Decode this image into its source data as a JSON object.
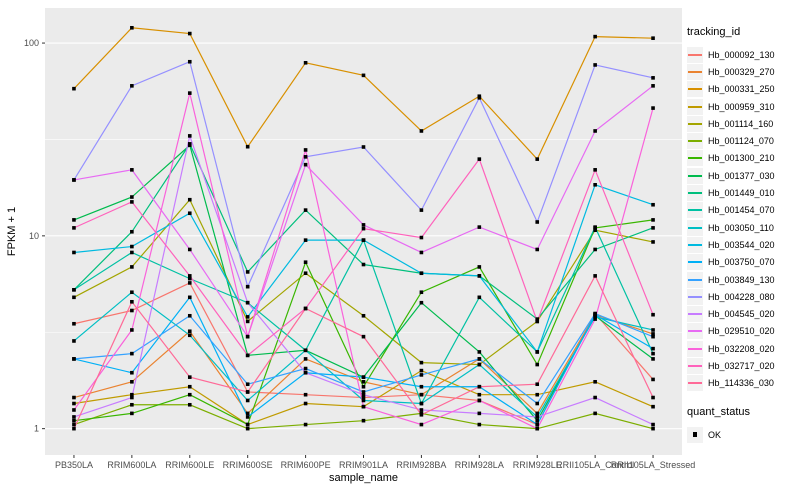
{
  "figure": {
    "background": "#FFFFFF",
    "panel_background": "#EBEBEB",
    "grid_color": "#FFFFFF",
    "tick_label_color": "#4D4D4D",
    "tick_mark_color": "#333333",
    "marker_color": "#000000"
  },
  "chart_data": {
    "type": "line",
    "title": "",
    "xlabel": "sample_name",
    "ylabel": "FPKM + 1",
    "y_scale": "log10",
    "ylim": [
      0.73,
      152
    ],
    "y_ticks": [
      100,
      10,
      1
    ],
    "y_tick_labels": [
      "100",
      "10",
      "1"
    ],
    "y_minor_ticks": [
      31.62,
      3.162
    ],
    "grid": true,
    "legend_position": "right",
    "legend_titles": {
      "series": "tracking_id",
      "shape": "quant_status"
    },
    "shape_legend": [
      {
        "label": "OK",
        "marker": "black-square"
      }
    ],
    "categories": [
      "PB350LA",
      "RRIM600LA",
      "RRIM600LE",
      "RRIM600SE",
      "RRIM600PE",
      "RRIM901LA",
      "RRIM928BA",
      "RRIM928LA",
      "RRIM928LE",
      "RRII105LA_Control",
      "RRII105LA_Stressed"
    ],
    "series": [
      {
        "name": "Hb_000092_130",
        "color": "#F8766D",
        "values": [
          3.5,
          4.1,
          5.7,
          1.55,
          1.5,
          1.45,
          1.5,
          1.4,
          1.05,
          3.95,
          1.8
        ]
      },
      {
        "name": "Hb_000329_270",
        "color": "#EA8331",
        "values": [
          1.45,
          1.75,
          3.2,
          1.2,
          2.3,
          1.75,
          1.5,
          2.3,
          1.2,
          3.9,
          3.1
        ]
      },
      {
        "name": "Hb_000331_250",
        "color": "#D89000",
        "values": [
          58,
          120,
          112,
          29,
          79,
          68,
          35,
          53,
          25,
          108,
          106
        ]
      },
      {
        "name": "Hb_000959_310",
        "color": "#C09B00",
        "values": [
          1.35,
          1.5,
          1.65,
          1.05,
          1.35,
          1.3,
          2.0,
          1.5,
          1.5,
          1.75,
          1.3
        ]
      },
      {
        "name": "Hb_001114_160",
        "color": "#A3A500",
        "values": [
          4.8,
          6.9,
          15.4,
          3.6,
          6.4,
          3.85,
          2.2,
          2.15,
          3.6,
          10.7,
          9.3
        ]
      },
      {
        "name": "Hb_001124_070",
        "color": "#7CAE00",
        "values": [
          1.05,
          1.33,
          1.33,
          1.0,
          1.05,
          1.1,
          1.2,
          1.05,
          1.0,
          1.2,
          1.0
        ]
      },
      {
        "name": "Hb_001300_210",
        "color": "#39B600",
        "values": [
          1.1,
          1.2,
          1.5,
          1.05,
          7.3,
          1.65,
          5.1,
          6.9,
          2.15,
          11.0,
          12.1
        ]
      },
      {
        "name": "Hb_001377_030",
        "color": "#00BB4E",
        "values": [
          12.1,
          15.9,
          29.5,
          2.4,
          2.55,
          1.85,
          4.5,
          2.5,
          1.1,
          3.85,
          2.3
        ]
      },
      {
        "name": "Hb_001449_010",
        "color": "#00BF7D",
        "values": [
          5.25,
          10.5,
          30,
          6.5,
          13.6,
          7.1,
          6.4,
          6.2,
          3.7,
          8.5,
          11.0
        ]
      },
      {
        "name": "Hb_001454_070",
        "color": "#00C1A3",
        "values": [
          5.25,
          8.2,
          6.0,
          4.5,
          2.55,
          9.5,
          1.35,
          4.8,
          2.5,
          11.1,
          2.45
        ]
      },
      {
        "name": "Hb_003050_110",
        "color": "#00BFC4",
        "values": [
          2.85,
          5.1,
          3.05,
          1.4,
          2.55,
          1.4,
          1.35,
          2.15,
          1.15,
          3.8,
          3.25
        ]
      },
      {
        "name": "Hb_003544_020",
        "color": "#00BAE0",
        "values": [
          8.2,
          8.8,
          13.1,
          3.8,
          9.5,
          9.5,
          6.4,
          6.2,
          2.5,
          18.4,
          14.5
        ]
      },
      {
        "name": "Hb_003750_070",
        "color": "#00B0F6",
        "values": [
          2.3,
          1.95,
          4.8,
          1.15,
          1.95,
          1.85,
          1.65,
          1.65,
          1.05,
          3.9,
          2.6
        ]
      },
      {
        "name": "Hb_003849_130",
        "color": "#35A2FF",
        "values": [
          2.3,
          2.45,
          3.85,
          1.7,
          2.05,
          1.55,
          1.9,
          2.3,
          1.35,
          3.95,
          3.0
        ]
      },
      {
        "name": "Hb_004228_080",
        "color": "#9590FF",
        "values": [
          19.5,
          60,
          80,
          5.45,
          25.7,
          28.9,
          13.6,
          52,
          11.8,
          77,
          66
        ]
      },
      {
        "name": "Hb_004545_020",
        "color": "#C77CFF",
        "values": [
          1.15,
          1.45,
          33,
          4.5,
          1.95,
          1.5,
          1.25,
          1.2,
          1.15,
          1.45,
          1.05
        ]
      },
      {
        "name": "Hb_029510_020",
        "color": "#E76BF3",
        "values": [
          19.5,
          22,
          8.5,
          3.0,
          23.4,
          11.4,
          8.2,
          11.1,
          8.5,
          35,
          60
        ]
      },
      {
        "name": "Hb_032208_020",
        "color": "#FA62DB",
        "values": [
          1.25,
          3.25,
          55,
          3.0,
          27.9,
          1.3,
          1.05,
          1.4,
          1.0,
          3.7,
          46
        ]
      },
      {
        "name": "Hb_032717_020",
        "color": "#FF62BC",
        "values": [
          11.0,
          15.0,
          6.2,
          2.4,
          4.2,
          10.9,
          9.8,
          25,
          3.6,
          22,
          3.9
        ]
      },
      {
        "name": "Hb_114336_030",
        "color": "#FF6A98",
        "values": [
          1.0,
          4.55,
          1.85,
          1.55,
          4.2,
          3.0,
          1.18,
          1.65,
          1.7,
          6.2,
          1.45
        ]
      }
    ]
  }
}
